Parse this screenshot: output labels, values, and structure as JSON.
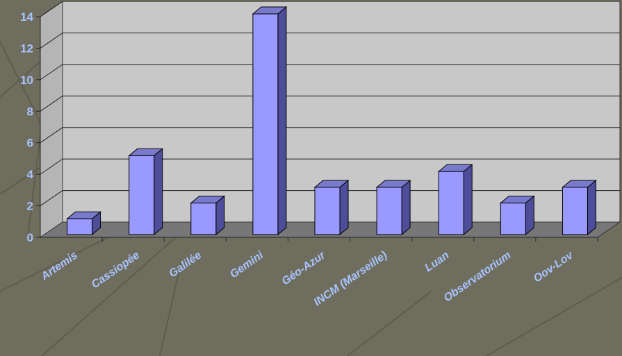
{
  "chart_data": {
    "type": "bar",
    "categories": [
      "Artemis",
      "Cassiopée",
      "Galilée",
      "Gemini",
      "Géo-Azur",
      "INCM (Marseille)",
      "Luan",
      "Observatorium",
      "Oov-Lov"
    ],
    "values": [
      1,
      5,
      2,
      14,
      3,
      3,
      4,
      2,
      3
    ],
    "yticks": [
      "0",
      "2",
      "4",
      "6",
      "8",
      "10",
      "12",
      "14"
    ],
    "ylim": [
      0,
      14
    ],
    "grid": true,
    "three_d": true,
    "title": "",
    "xlabel": "",
    "ylabel": ""
  },
  "colors": {
    "background": "#6f6d5e",
    "wall": "#c8c8c8",
    "floor": "#777777",
    "bar_front": "#9999ff",
    "bar_side": "#4d4d99",
    "bar_top": "#7a7acc",
    "label": "#a8c4ff"
  }
}
